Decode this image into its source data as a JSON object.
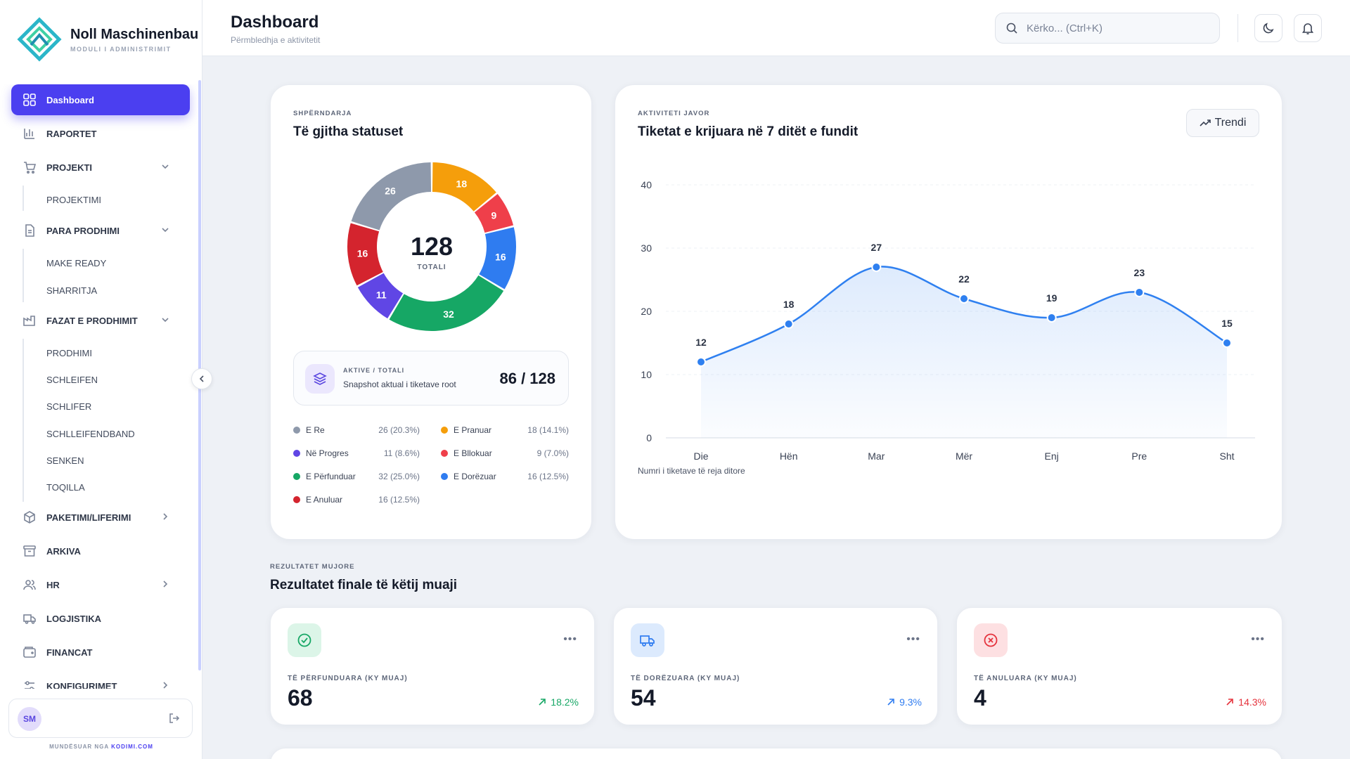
{
  "brand": {
    "name": "Noll Maschinenbau",
    "subtitle": "MODULI I ADMINISTRIMIT"
  },
  "header": {
    "title": "Dashboard",
    "subtitle": "Përmbledhja e aktivitetit",
    "search_placeholder": "Kërko... (Ctrl+K)"
  },
  "sidebar": {
    "items": [
      {
        "label": "Dashboard"
      },
      {
        "label": "RAPORTET"
      },
      {
        "label": "PROJEKTI"
      },
      {
        "label": "PROJEKTIMI"
      },
      {
        "label": "PARA PRODHIMI"
      },
      {
        "label": "MAKE READY"
      },
      {
        "label": "SHARRITJA"
      },
      {
        "label": "FAZAT E PRODHIMIT"
      },
      {
        "label": "PRODHIMI"
      },
      {
        "label": "SCHLEIFEN"
      },
      {
        "label": "SCHLIFER"
      },
      {
        "label": "SCHLLEIFENDBAND"
      },
      {
        "label": "SENKEN"
      },
      {
        "label": "TOQILLA"
      },
      {
        "label": "PAKETIMI/LIFERIMI"
      },
      {
        "label": "ARKIVA"
      },
      {
        "label": "HR"
      },
      {
        "label": "LOGJISTIKA"
      },
      {
        "label": "FINANCAT"
      },
      {
        "label": "KONFIGURIMET"
      }
    ],
    "user_initials": "SM",
    "powered_prefix": "MUNDËSUAR NGA",
    "powered_brand": "KODIMI.COM"
  },
  "status_card": {
    "eyebrow": "SHPËRNDARJA",
    "title": "Të gjitha statuset",
    "total": "128",
    "total_label": "TOTALI",
    "snapshot_eyebrow": "AKTIVE / TOTALI",
    "snapshot_desc": "Snapshot aktual i tiketave root",
    "snapshot_value": "86 / 128",
    "legend": [
      {
        "name": "E Re",
        "value": "26 (20.3%)",
        "color": "#8e99ab"
      },
      {
        "name": "E Pranuar",
        "value": "18 (14.1%)",
        "color": "#f59e0b"
      },
      {
        "name": "Në Progres",
        "value": "11 (8.6%)",
        "color": "#6046e5"
      },
      {
        "name": "E Bllokuar",
        "value": "9 (7.0%)",
        "color": "#ef3f4a"
      },
      {
        "name": "E Përfunduar",
        "value": "32 (25.0%)",
        "color": "#16a765"
      },
      {
        "name": "E Dorëzuar",
        "value": "16 (12.5%)",
        "color": "#2f7cf0"
      },
      {
        "name": "E Anuluar",
        "value": "16 (12.5%)",
        "color": "#d4242e"
      }
    ]
  },
  "chart_data": [
    {
      "type": "pie",
      "title": "Të gjitha statuset",
      "categories": [
        "E Pranuar",
        "E Bllokuar",
        "E Dorëzuar",
        "E Përfunduar",
        "Në Progres",
        "E Anuluar",
        "E Re"
      ],
      "values": [
        18,
        9,
        16,
        32,
        11,
        16,
        26
      ],
      "colors": [
        "#f59e0b",
        "#ef3f4a",
        "#2f7cf0",
        "#16a765",
        "#6046e5",
        "#d4242e",
        "#8e99ab"
      ]
    },
    {
      "type": "area",
      "title": "Tiketat e krijuara në 7 ditët e fundit",
      "categories": [
        "Die",
        "Hën",
        "Mar",
        "Mër",
        "Enj",
        "Pre",
        "Sht"
      ],
      "series": [
        {
          "values": [
            12,
            18,
            27,
            22,
            19,
            23,
            15
          ]
        }
      ],
      "ylim": [
        0,
        40
      ],
      "yticks": [
        0,
        10,
        20,
        30,
        40
      ],
      "grid": true,
      "color": "#2f80f0"
    }
  ],
  "weekly_card": {
    "eyebrow": "AKTIVITETI JAVOR",
    "title": "Tiketat e krijuara në 7 ditët e fundit",
    "trend_label": "Trendi",
    "caption": "Numri i tiketave të reja ditore"
  },
  "monthly": {
    "eyebrow": "REZULTATET MUJORE",
    "title": "Rezultatet finale të këtij muaji",
    "cards": [
      {
        "label": "TË PËRFUNDUARA (KY MUAJ)",
        "value": "68",
        "delta": "18.2%",
        "color": "#16a765",
        "bg": "#dcf5e8",
        "icon": "check-circle-icon"
      },
      {
        "label": "TË DORËZUARA (KY MUAJ)",
        "value": "54",
        "delta": "9.3%",
        "color": "#2f7cf0",
        "bg": "#dceafd",
        "icon": "truck-icon"
      },
      {
        "label": "TË ANULUARA (KY MUAJ)",
        "value": "4",
        "delta": "14.3%",
        "color": "#e5323c",
        "bg": "#fde0e2",
        "icon": "x-circle-icon"
      }
    ]
  }
}
